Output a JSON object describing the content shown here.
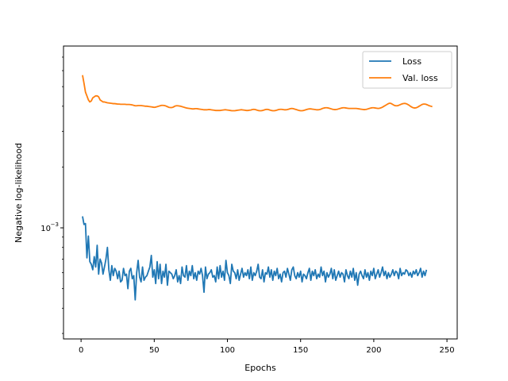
{
  "chart_data": {
    "type": "line",
    "title": "",
    "xlabel": "Epochs",
    "ylabel": "Negative log-likelihood",
    "yscale": "log",
    "xlim": [
      -12,
      257
    ],
    "ylim_log10": [
      -3.55,
      -2.1
    ],
    "x_ticks": [
      0,
      50,
      100,
      150,
      200,
      250
    ],
    "x_tick_labels": [
      "0",
      "50",
      "100",
      "150",
      "200",
      "250"
    ],
    "y_ticks": [
      0.001
    ],
    "y_tick_labels": [
      "10",
      "−3"
    ],
    "grid": false,
    "legend_position": "upper right",
    "series": [
      {
        "name": "Loss",
        "color": "#1f77b4",
        "x_start": 1,
        "values": [
          0.00114,
          0.00104,
          0.00105,
          0.00071,
          0.00091,
          0.00068,
          0.00066,
          0.00062,
          0.00072,
          0.00064,
          0.00082,
          0.00059,
          0.0007,
          0.00067,
          0.00059,
          0.00064,
          0.0007,
          0.0008,
          0.00062,
          0.00055,
          0.00065,
          0.00058,
          0.00063,
          0.00061,
          0.00056,
          0.00061,
          0.00054,
          0.00055,
          0.00063,
          0.00058,
          0.00059,
          0.0005,
          0.00061,
          0.00063,
          0.00056,
          0.00058,
          0.00044,
          0.0006,
          0.00069,
          0.00057,
          0.00054,
          0.00064,
          0.00055,
          0.00057,
          0.00058,
          0.00061,
          0.00064,
          0.00073,
          0.00057,
          0.00062,
          0.00053,
          0.00068,
          0.00056,
          0.00066,
          0.00053,
          0.00061,
          0.00057,
          0.00066,
          0.00052,
          0.00061,
          0.0006,
          0.00059,
          0.00056,
          0.00058,
          0.00062,
          0.00054,
          0.00058,
          0.00053,
          0.00064,
          0.00058,
          0.00057,
          0.00065,
          0.00055,
          0.00061,
          0.00058,
          0.00065,
          0.00056,
          0.0006,
          0.00055,
          0.00061,
          0.00059,
          0.00063,
          0.00058,
          0.00048,
          0.00064,
          0.00056,
          0.00059,
          0.0006,
          0.00062,
          0.00057,
          0.00058,
          0.00054,
          0.00064,
          0.00056,
          0.00065,
          0.00057,
          0.00061,
          0.00055,
          0.00069,
          0.0006,
          0.00058,
          0.00053,
          0.00066,
          0.00061,
          0.0006,
          0.00056,
          0.00062,
          0.00055,
          0.00059,
          0.00063,
          0.00057,
          0.0006,
          0.00058,
          0.00062,
          0.00056,
          0.00064,
          0.00055,
          0.0006,
          0.00058,
          0.00061,
          0.00066,
          0.00057,
          0.00056,
          0.00062,
          0.00054,
          0.0006,
          0.00059,
          0.00064,
          0.00057,
          0.00062,
          0.00055,
          0.00061,
          0.00058,
          0.00063,
          0.00056,
          0.00059,
          0.00054,
          0.0006,
          0.00061,
          0.00057,
          0.00063,
          0.00059,
          0.00055,
          0.00062,
          0.00064,
          0.00058,
          0.00056,
          0.0006,
          0.00057,
          0.00061,
          0.00054,
          0.00059,
          0.00058,
          0.00056,
          0.0006,
          0.00063,
          0.00055,
          0.00061,
          0.00058,
          0.00062,
          0.00056,
          0.00059,
          0.00057,
          0.00064,
          0.00058,
          0.00061,
          0.00054,
          0.0006,
          0.00057,
          0.00059,
          0.00063,
          0.00056,
          0.00062,
          0.00055,
          0.00058,
          0.00061,
          0.00057,
          0.0006,
          0.00059,
          0.00054,
          0.00062,
          0.00058,
          0.00056,
          0.00061,
          0.00057,
          0.00063,
          0.00055,
          0.0006,
          0.00052,
          0.00059,
          0.00061,
          0.00058,
          0.00056,
          0.00062,
          0.00057,
          0.0006,
          0.00055,
          0.00061,
          0.00058,
          0.00063,
          0.00056,
          0.00059,
          0.00062,
          0.00057,
          0.0006,
          0.00064,
          0.00058,
          0.00061,
          0.00056,
          0.0006,
          0.00057,
          0.00059,
          0.00062,
          0.00058,
          0.00061,
          0.0006,
          0.00056,
          0.00063,
          0.00058,
          0.0006,
          0.00059,
          0.00062,
          0.00061,
          0.00058,
          0.0006,
          0.00057,
          0.00061,
          0.00059,
          0.00062,
          0.00058,
          0.0006,
          0.00063,
          0.00057,
          0.00061,
          0.00058,
          0.00062
        ]
      },
      {
        "name": "Val. loss",
        "color": "#ff7f0e",
        "x_start": 1,
        "values": [
          0.0057,
          0.0052,
          0.0047,
          0.0045,
          0.0043,
          0.0042,
          0.00425,
          0.0044,
          0.00445,
          0.0045,
          0.0045,
          0.00445,
          0.0043,
          0.00425,
          0.0042,
          0.0042,
          0.00418,
          0.00416,
          0.00415,
          0.00414,
          0.00413,
          0.00412,
          0.00412,
          0.00411,
          0.0041,
          0.0041,
          0.00409,
          0.00409,
          0.00409,
          0.00409,
          0.00408,
          0.00408,
          0.00408,
          0.00407,
          0.00406,
          0.00404,
          0.00402,
          0.00402,
          0.00403,
          0.00403,
          0.00403,
          0.00402,
          0.00401,
          0.004,
          0.004,
          0.00399,
          0.00398,
          0.00397,
          0.00396,
          0.00395,
          0.00396,
          0.00398,
          0.004,
          0.00402,
          0.00404,
          0.00404,
          0.00403,
          0.00401,
          0.00398,
          0.00395,
          0.00394,
          0.00394,
          0.00396,
          0.004,
          0.00402,
          0.00402,
          0.00401,
          0.004,
          0.00398,
          0.00396,
          0.00394,
          0.00392,
          0.00391,
          0.0039,
          0.00389,
          0.00388,
          0.00388,
          0.00389,
          0.00389,
          0.00388,
          0.00387,
          0.00386,
          0.00385,
          0.00384,
          0.00384,
          0.00384,
          0.00385,
          0.00385,
          0.00384,
          0.00383,
          0.00382,
          0.00381,
          0.00381,
          0.00381,
          0.00381,
          0.00382,
          0.00383,
          0.00384,
          0.00384,
          0.00383,
          0.00382,
          0.00381,
          0.0038,
          0.0038,
          0.0038,
          0.00381,
          0.00382,
          0.00383,
          0.00384,
          0.00384,
          0.00383,
          0.00382,
          0.00381,
          0.00381,
          0.00382,
          0.00383,
          0.00385,
          0.00386,
          0.00385,
          0.00383,
          0.00381,
          0.0038,
          0.0038,
          0.00381,
          0.00383,
          0.00385,
          0.00386,
          0.00385,
          0.00383,
          0.00381,
          0.0038,
          0.0038,
          0.00381,
          0.00383,
          0.00385,
          0.00386,
          0.00386,
          0.00385,
          0.00384,
          0.00384,
          0.00385,
          0.00387,
          0.00389,
          0.0039,
          0.00389,
          0.00387,
          0.00385,
          0.00383,
          0.00381,
          0.0038,
          0.0038,
          0.00381,
          0.00383,
          0.00385,
          0.00387,
          0.00388,
          0.00388,
          0.00387,
          0.00386,
          0.00385,
          0.00384,
          0.00384,
          0.00385,
          0.00387,
          0.0039,
          0.00392,
          0.00393,
          0.00393,
          0.00392,
          0.0039,
          0.00388,
          0.00386,
          0.00385,
          0.00385,
          0.00386,
          0.00388,
          0.0039,
          0.00392,
          0.00393,
          0.00393,
          0.00392,
          0.00391,
          0.0039,
          0.0039,
          0.0039,
          0.0039,
          0.0039,
          0.0039,
          0.00389,
          0.00388,
          0.00387,
          0.00386,
          0.00385,
          0.00385,
          0.00386,
          0.00388,
          0.0039,
          0.00392,
          0.00393,
          0.00393,
          0.00392,
          0.00391,
          0.0039,
          0.00391,
          0.00393,
          0.00396,
          0.004,
          0.00404,
          0.00408,
          0.00412,
          0.00414,
          0.00412,
          0.00408,
          0.00404,
          0.00402,
          0.00402,
          0.00404,
          0.00407,
          0.0041,
          0.00412,
          0.00413,
          0.00412,
          0.00409,
          0.00405,
          0.004,
          0.00396,
          0.00393,
          0.00392,
          0.00393,
          0.00396,
          0.004,
          0.00404,
          0.00408,
          0.0041,
          0.0041,
          0.00408,
          0.00405,
          0.00402,
          0.004,
          0.00398
        ]
      }
    ]
  }
}
